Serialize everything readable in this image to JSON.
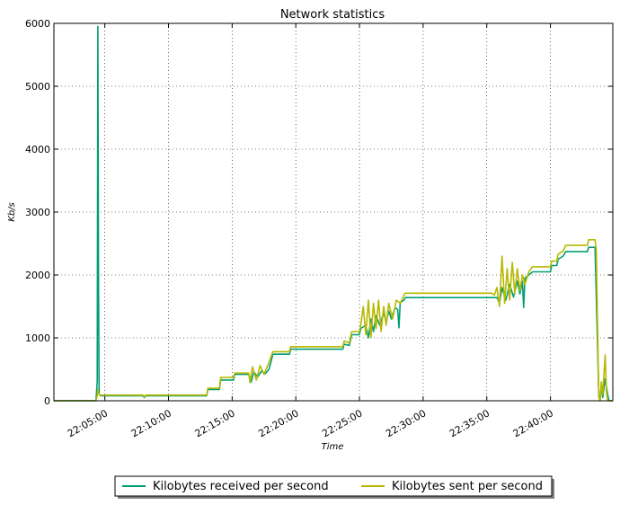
{
  "chart_data": {
    "type": "line",
    "title": "Network statistics",
    "xlabel": "Time",
    "ylabel": "Kb/s",
    "grid": true,
    "legend_position": "below",
    "x_unit": "minutes after 22:00",
    "xlim": [
      1.0,
      44.9
    ],
    "ylim": [
      0,
      6000
    ],
    "x_ticks": [
      {
        "value": 5,
        "label": "22:05:00"
      },
      {
        "value": 10,
        "label": "22:10:00"
      },
      {
        "value": 15,
        "label": "22:15:00"
      },
      {
        "value": 20,
        "label": "22:20:00"
      },
      {
        "value": 25,
        "label": "22:25:00"
      },
      {
        "value": 30,
        "label": "22:30:00"
      },
      {
        "value": 35,
        "label": "22:35:00"
      },
      {
        "value": 40,
        "label": "22:40:00"
      }
    ],
    "y_ticks": [
      0,
      1000,
      2000,
      3000,
      4000,
      5000,
      6000
    ],
    "series": [
      {
        "name": "Kilobytes received per second",
        "color": "#009e73",
        "points": [
          [
            1.0,
            0
          ],
          [
            4.3,
            0
          ],
          [
            4.4,
            300
          ],
          [
            4.45,
            5950
          ],
          [
            4.5,
            2000
          ],
          [
            4.55,
            100
          ],
          [
            4.7,
            80
          ],
          [
            8.0,
            80
          ],
          [
            8.1,
            50
          ],
          [
            8.2,
            80
          ],
          [
            13.0,
            80
          ],
          [
            13.1,
            180
          ],
          [
            14.0,
            180
          ],
          [
            14.1,
            330
          ],
          [
            15.1,
            330
          ],
          [
            15.2,
            420
          ],
          [
            16.3,
            420
          ],
          [
            16.5,
            300
          ],
          [
            16.7,
            460
          ],
          [
            17.0,
            380
          ],
          [
            17.3,
            470
          ],
          [
            17.6,
            430
          ],
          [
            17.9,
            500
          ],
          [
            18.2,
            740
          ],
          [
            19.5,
            740
          ],
          [
            19.6,
            820
          ],
          [
            23.7,
            820
          ],
          [
            23.8,
            900
          ],
          [
            24.2,
            880
          ],
          [
            24.4,
            1050
          ],
          [
            25.0,
            1050
          ],
          [
            25.1,
            1150
          ],
          [
            25.5,
            1200
          ],
          [
            25.7,
            1000
          ],
          [
            25.9,
            1300
          ],
          [
            26.1,
            1100
          ],
          [
            26.3,
            1350
          ],
          [
            26.6,
            1200
          ],
          [
            26.9,
            1400
          ],
          [
            27.1,
            1250
          ],
          [
            27.3,
            1430
          ],
          [
            27.5,
            1300
          ],
          [
            27.8,
            1480
          ],
          [
            28.0,
            1450
          ],
          [
            28.1,
            1160
          ],
          [
            28.2,
            1560
          ],
          [
            28.5,
            1600
          ],
          [
            28.6,
            1640
          ],
          [
            35.8,
            1640
          ],
          [
            36.0,
            1550
          ],
          [
            36.2,
            1800
          ],
          [
            36.5,
            1600
          ],
          [
            36.8,
            1850
          ],
          [
            37.1,
            1650
          ],
          [
            37.4,
            1900
          ],
          [
            37.6,
            1700
          ],
          [
            37.8,
            1900
          ],
          [
            37.9,
            1480
          ],
          [
            38.0,
            1950
          ],
          [
            38.3,
            2000
          ],
          [
            38.6,
            2050
          ],
          [
            40.0,
            2050
          ],
          [
            40.1,
            2150
          ],
          [
            40.5,
            2150
          ],
          [
            40.6,
            2250
          ],
          [
            41.0,
            2300
          ],
          [
            41.2,
            2370
          ],
          [
            42.9,
            2370
          ],
          [
            43.0,
            2440
          ],
          [
            43.5,
            2440
          ],
          [
            43.8,
            100
          ],
          [
            43.9,
            0
          ],
          [
            44.0,
            250
          ],
          [
            44.1,
            50
          ],
          [
            44.3,
            350
          ],
          [
            44.5,
            100
          ],
          [
            44.6,
            0
          ],
          [
            44.9,
            0
          ]
        ]
      },
      {
        "name": "Kilobytes sent per second",
        "color": "#b8b800",
        "points": [
          [
            1.0,
            0
          ],
          [
            4.3,
            0
          ],
          [
            4.4,
            80
          ],
          [
            4.45,
            180
          ],
          [
            4.5,
            120
          ],
          [
            4.6,
            90
          ],
          [
            4.7,
            90
          ],
          [
            8.0,
            90
          ],
          [
            8.1,
            60
          ],
          [
            8.2,
            90
          ],
          [
            13.0,
            90
          ],
          [
            13.1,
            200
          ],
          [
            14.0,
            200
          ],
          [
            14.1,
            370
          ],
          [
            15.1,
            370
          ],
          [
            15.2,
            440
          ],
          [
            16.3,
            440
          ],
          [
            16.4,
            290
          ],
          [
            16.6,
            540
          ],
          [
            16.9,
            330
          ],
          [
            17.2,
            560
          ],
          [
            17.5,
            420
          ],
          [
            17.8,
            560
          ],
          [
            18.2,
            780
          ],
          [
            19.5,
            780
          ],
          [
            19.6,
            860
          ],
          [
            23.7,
            860
          ],
          [
            23.8,
            950
          ],
          [
            24.2,
            920
          ],
          [
            24.4,
            1100
          ],
          [
            25.0,
            1100
          ],
          [
            25.1,
            1200
          ],
          [
            25.3,
            1500
          ],
          [
            25.5,
            1050
          ],
          [
            25.7,
            1600
          ],
          [
            25.9,
            1000
          ],
          [
            26.1,
            1550
          ],
          [
            26.3,
            1150
          ],
          [
            26.5,
            1600
          ],
          [
            26.7,
            1100
          ],
          [
            26.9,
            1500
          ],
          [
            27.1,
            1200
          ],
          [
            27.3,
            1550
          ],
          [
            27.6,
            1300
          ],
          [
            27.9,
            1600
          ],
          [
            28.2,
            1550
          ],
          [
            28.5,
            1680
          ],
          [
            28.6,
            1710
          ],
          [
            35.4,
            1710
          ],
          [
            35.6,
            1680
          ],
          [
            35.8,
            1800
          ],
          [
            36.0,
            1500
          ],
          [
            36.2,
            2300
          ],
          [
            36.4,
            1550
          ],
          [
            36.6,
            2100
          ],
          [
            36.8,
            1600
          ],
          [
            37.0,
            2200
          ],
          [
            37.2,
            1700
          ],
          [
            37.4,
            2100
          ],
          [
            37.6,
            1750
          ],
          [
            37.8,
            2000
          ],
          [
            38.0,
            1850
          ],
          [
            38.3,
            2050
          ],
          [
            38.6,
            2130
          ],
          [
            40.0,
            2130
          ],
          [
            40.1,
            2220
          ],
          [
            40.5,
            2220
          ],
          [
            40.6,
            2330
          ],
          [
            41.0,
            2380
          ],
          [
            41.2,
            2470
          ],
          [
            42.9,
            2470
          ],
          [
            43.0,
            2560
          ],
          [
            43.5,
            2560
          ],
          [
            43.6,
            2400
          ],
          [
            43.8,
            50
          ],
          [
            43.9,
            0
          ],
          [
            44.0,
            300
          ],
          [
            44.1,
            100
          ],
          [
            44.3,
            730
          ],
          [
            44.4,
            150
          ],
          [
            44.5,
            0
          ],
          [
            44.9,
            0
          ]
        ]
      }
    ]
  }
}
